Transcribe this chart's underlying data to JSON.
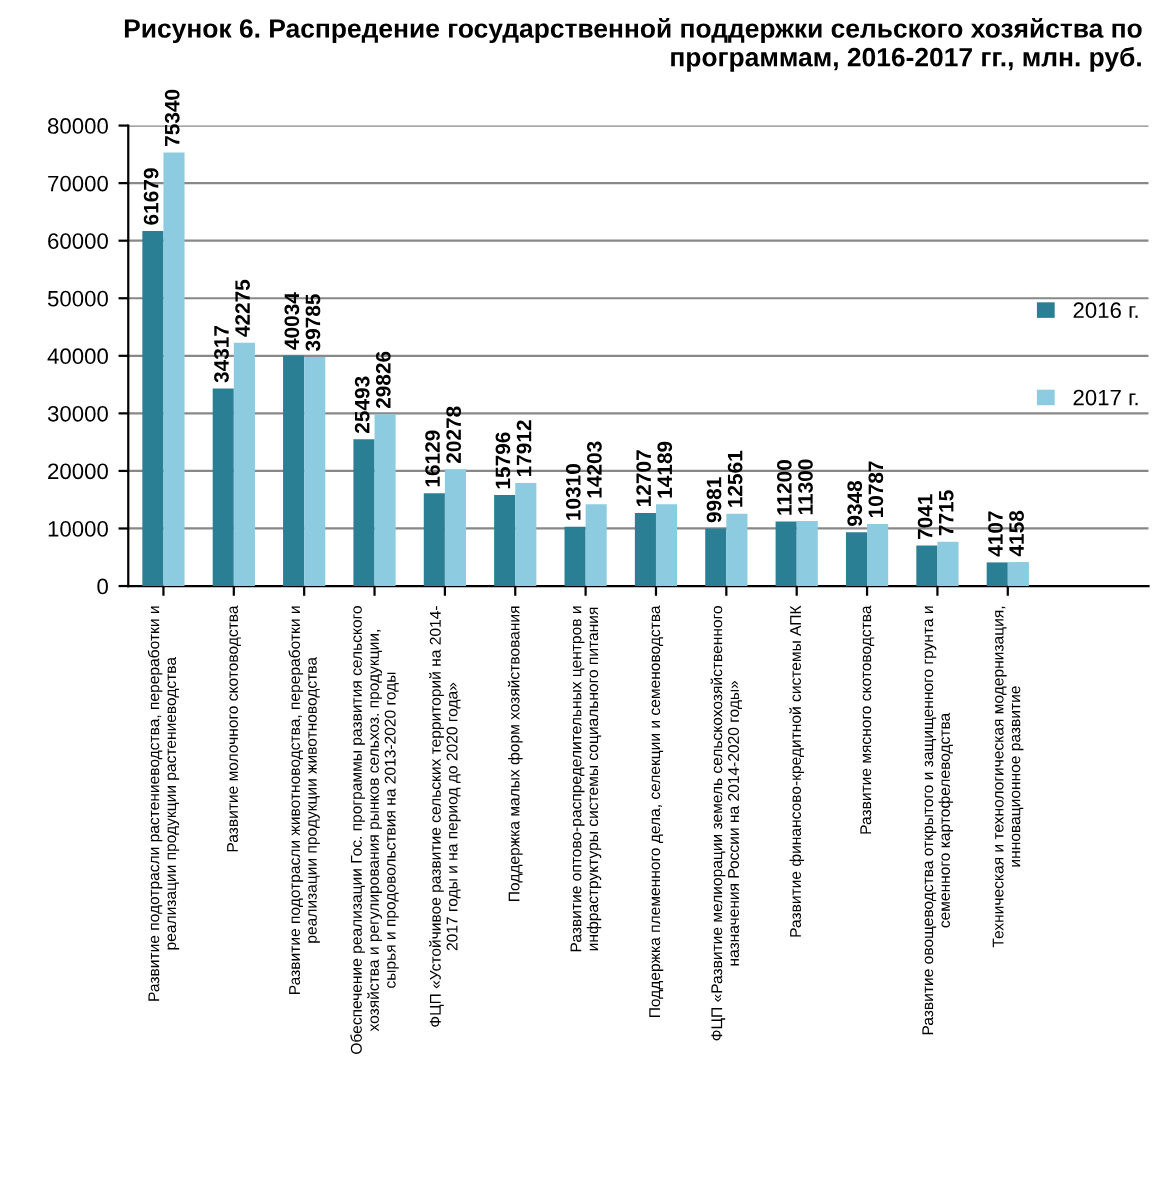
{
  "chart_data": {
    "type": "bar",
    "title": "Рисунок 6. Распредение государственной поддержки сельского хозяйства по программам, 2016-2017 гг., млн. руб.",
    "categories": [
      "Развитие подотрасли растениеводства, переработки и\nреализации продукции растениеводства",
      "Развитие молочного скотоводства",
      "Развитие подотрасли животноводства, переработки и\nреализации продукции животноводства",
      "Обеспечение реализации Гос. программы развития сельского\nхозяйства и регулирования рынков сельхоз. продукции,\nсырья и продовольствия на 2013-2020 годы",
      "ФЦП «Устойчивое развитие сельских территорий на 2014-\n2017 годы и на период до 2020 года»",
      "Поддержка малых форм хозяйствования",
      "Развитие оптово-распределительных центров и\nинфраструктуры системы социального питания",
      "Поддержка племенного дела, селекции и семеноводства",
      "ФЦП «Развитие мелиорации земель сельскохозяйственного\nназначения России на 2014-2020 годы»",
      "Развитие финансово-кредитной системы АПК",
      "Развитие мясного скотоводства",
      "Развитие овощеводства открытого и защищенного грунта и\nсеменного картофелеводства",
      "Техническая и технологическая модернизация,\nинновационное развитие"
    ],
    "series": [
      {
        "name": "2016 г.",
        "color": "#2a7f95",
        "values": [
          61679,
          34317,
          40034,
          25493,
          16129,
          15796,
          10310,
          12707,
          9981,
          11200,
          9348,
          7041,
          4107
        ]
      },
      {
        "name": "2017 г.",
        "color": "#8ccbe0",
        "values": [
          75340,
          42275,
          39785,
          29826,
          20278,
          17912,
          14203,
          14189,
          12561,
          11300,
          10787,
          7715,
          4158
        ]
      }
    ],
    "ylim": [
      0,
      80000
    ],
    "yticks": [
      0,
      10000,
      20000,
      30000,
      40000,
      50000,
      60000,
      70000,
      80000
    ],
    "grid": "y",
    "legend": "right",
    "data_labels": true
  }
}
